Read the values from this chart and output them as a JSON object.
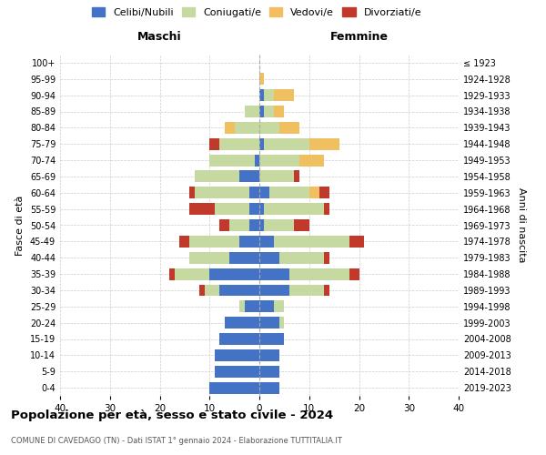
{
  "age_groups": [
    "0-4",
    "5-9",
    "10-14",
    "15-19",
    "20-24",
    "25-29",
    "30-34",
    "35-39",
    "40-44",
    "45-49",
    "50-54",
    "55-59",
    "60-64",
    "65-69",
    "70-74",
    "75-79",
    "80-84",
    "85-89",
    "90-94",
    "95-99",
    "100+"
  ],
  "birth_years": [
    "2019-2023",
    "2014-2018",
    "2009-2013",
    "2004-2008",
    "1999-2003",
    "1994-1998",
    "1989-1993",
    "1984-1988",
    "1979-1983",
    "1974-1978",
    "1969-1973",
    "1964-1968",
    "1959-1963",
    "1954-1958",
    "1949-1953",
    "1944-1948",
    "1939-1943",
    "1934-1938",
    "1929-1933",
    "1924-1928",
    "≤ 1923"
  ],
  "colors": {
    "celibe": "#4472c4",
    "coniugato": "#c5d9a0",
    "vedovo": "#f0c060",
    "divorziato": "#c0392b"
  },
  "maschi": {
    "celibe": [
      10,
      9,
      9,
      8,
      7,
      3,
      8,
      10,
      6,
      4,
      2,
      2,
      2,
      4,
      1,
      0,
      0,
      0,
      0,
      0,
      0
    ],
    "coniugato": [
      0,
      0,
      0,
      0,
      0,
      1,
      3,
      7,
      8,
      10,
      4,
      7,
      11,
      9,
      9,
      8,
      5,
      3,
      0,
      0,
      0
    ],
    "vedovo": [
      0,
      0,
      0,
      0,
      0,
      0,
      0,
      0,
      0,
      0,
      0,
      0,
      0,
      0,
      0,
      0,
      2,
      0,
      0,
      0,
      0
    ],
    "divorziato": [
      0,
      0,
      0,
      0,
      0,
      0,
      1,
      1,
      0,
      2,
      2,
      5,
      1,
      0,
      0,
      2,
      0,
      0,
      0,
      0,
      0
    ]
  },
  "femmine": {
    "celibe": [
      4,
      4,
      4,
      5,
      4,
      3,
      6,
      6,
      4,
      3,
      1,
      1,
      2,
      0,
      0,
      1,
      0,
      1,
      1,
      0,
      0
    ],
    "coniugato": [
      0,
      0,
      0,
      0,
      1,
      2,
      7,
      12,
      9,
      15,
      6,
      12,
      8,
      7,
      8,
      9,
      4,
      2,
      2,
      0,
      0
    ],
    "vedovo": [
      0,
      0,
      0,
      0,
      0,
      0,
      0,
      0,
      0,
      0,
      0,
      0,
      2,
      0,
      5,
      6,
      4,
      2,
      4,
      1,
      0
    ],
    "divorziato": [
      0,
      0,
      0,
      0,
      0,
      0,
      1,
      2,
      1,
      3,
      3,
      1,
      2,
      1,
      0,
      0,
      0,
      0,
      0,
      0,
      0
    ]
  },
  "title": "Popolazione per età, sesso e stato civile - 2024",
  "subtitle": "COMUNE DI CAVEDAGO (TN) - Dati ISTAT 1° gennaio 2024 - Elaborazione TUTTITALIA.IT",
  "xlabel_left": "Maschi",
  "xlabel_right": "Femmine",
  "ylabel_left": "Fasce di età",
  "ylabel_right": "Anni di nascita",
  "xlim": 40,
  "legend_labels": [
    "Celibi/Nubili",
    "Coniugati/e",
    "Vedovi/e",
    "Divorziati/e"
  ],
  "background_color": "#ffffff",
  "grid_color": "#cccccc"
}
